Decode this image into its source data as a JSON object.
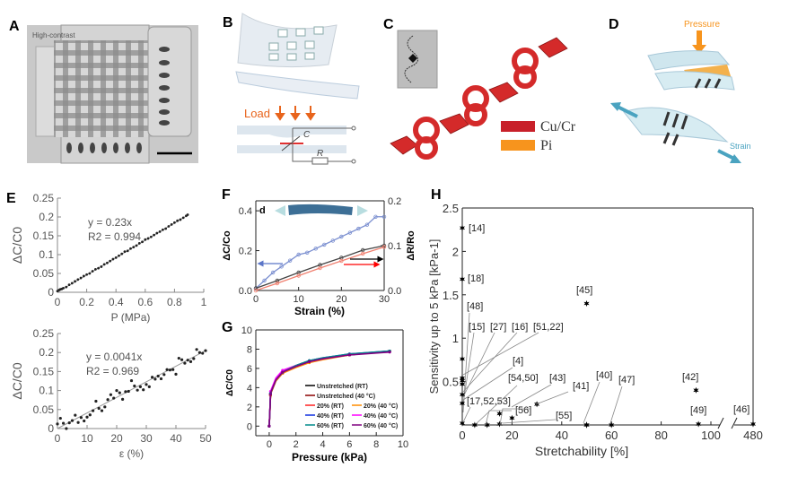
{
  "panels": {
    "A": "A",
    "B": "B",
    "C": "C",
    "D": "D",
    "E": "E",
    "F": "F",
    "G": "G",
    "H": "H"
  },
  "panel_a": {
    "caption": "High-contrast"
  },
  "panel_b": {
    "load_label": "Load",
    "capacitor_label": "C",
    "resistor_label": "R"
  },
  "panel_c": {
    "legend": [
      {
        "label": "Cu/Cr",
        "color": "#c8202a"
      },
      {
        "label": "Pi",
        "color": "#f7941d"
      }
    ]
  },
  "panel_d": {
    "pressure_label": "Pressure",
    "strain_label": "Strain"
  },
  "chart_data": [
    {
      "id": "E-top",
      "type": "scatter",
      "xlabel": "P (MPa)",
      "ylabel": "ΔC/C0",
      "xlim": [
        0,
        1
      ],
      "ylim": [
        0,
        0.25
      ],
      "xticks": [
        "0",
        "0.2",
        "0.4",
        "0.6",
        "0.8",
        "1"
      ],
      "xtick_values": [
        0,
        0.2,
        0.4,
        0.6,
        0.8,
        1
      ],
      "yticks": [
        "0",
        "0.05",
        "0.1",
        "0.15",
        "0.2",
        "0.25"
      ],
      "ytick_values": [
        0,
        0.05,
        0.1,
        0.15,
        0.2,
        0.25
      ],
      "annotation": [
        "y = 0.23x",
        "R2 = 0.994"
      ],
      "fit": {
        "slope": 0.23
      },
      "x": [
        0,
        0.01,
        0.02,
        0.03,
        0.04,
        0.06,
        0.08,
        0.1,
        0.12,
        0.14,
        0.16,
        0.18,
        0.2,
        0.22,
        0.24,
        0.26,
        0.28,
        0.3,
        0.32,
        0.34,
        0.36,
        0.38,
        0.4,
        0.42,
        0.44,
        0.46,
        0.48,
        0.5,
        0.52,
        0.54,
        0.56,
        0.58,
        0.6,
        0.62,
        0.64,
        0.66,
        0.68,
        0.7,
        0.72,
        0.74,
        0.76,
        0.78,
        0.8,
        0.82,
        0.84,
        0.86,
        0.88,
        0.89
      ],
      "y": [
        0.003,
        0.006,
        0.008,
        0.009,
        0.011,
        0.014,
        0.02,
        0.024,
        0.029,
        0.034,
        0.038,
        0.043,
        0.047,
        0.05,
        0.056,
        0.061,
        0.064,
        0.068,
        0.074,
        0.078,
        0.083,
        0.088,
        0.092,
        0.097,
        0.102,
        0.108,
        0.11,
        0.116,
        0.12,
        0.124,
        0.13,
        0.134,
        0.14,
        0.143,
        0.147,
        0.152,
        0.157,
        0.161,
        0.166,
        0.169,
        0.175,
        0.18,
        0.185,
        0.19,
        0.193,
        0.198,
        0.203,
        0.206
      ]
    },
    {
      "id": "E-bottom",
      "type": "scatter",
      "xlabel": "ε (%)",
      "ylabel": "ΔC/C0",
      "xlim": [
        0,
        50
      ],
      "ylim": [
        0,
        0.25
      ],
      "xticks": [
        "0",
        "10",
        "20",
        "30",
        "40",
        "50"
      ],
      "xtick_values": [
        0,
        10,
        20,
        30,
        40,
        50
      ],
      "yticks": [
        "0",
        "0.05",
        "0.1",
        "0.15",
        "0.2",
        "0.25"
      ],
      "ytick_values": [
        0,
        0.05,
        0.1,
        0.15,
        0.2,
        0.25
      ],
      "annotation": [
        "y = 0.0041x",
        "R2 = 0.969"
      ],
      "fit": {
        "slope": 0.0041
      },
      "x": [
        0,
        1,
        2,
        3,
        4,
        5,
        6,
        7,
        8,
        9,
        10,
        11,
        12,
        13,
        14,
        15,
        16,
        17,
        18,
        19,
        20,
        21,
        22,
        23,
        24,
        25,
        26,
        27,
        28,
        29,
        30,
        31,
        32,
        33,
        34,
        35,
        36,
        37,
        38,
        39,
        40,
        41,
        42,
        43,
        44,
        45,
        46,
        47,
        48,
        49,
        50
      ],
      "y": [
        0.012,
        0.027,
        0.014,
        0.0,
        0.015,
        0.021,
        0.035,
        0.016,
        0.029,
        0.02,
        0.03,
        0.036,
        0.047,
        0.072,
        0.053,
        0.047,
        0.057,
        0.076,
        0.089,
        0.08,
        0.1,
        0.094,
        0.077,
        0.097,
        0.098,
        0.126,
        0.112,
        0.101,
        0.11,
        0.102,
        0.116,
        0.11,
        0.135,
        0.13,
        0.138,
        0.131,
        0.142,
        0.155,
        0.154,
        0.155,
        0.143,
        0.185,
        0.181,
        0.172,
        0.18,
        0.176,
        0.184,
        0.208,
        0.2,
        0.198,
        0.205
      ]
    },
    {
      "id": "F",
      "type": "line",
      "xlabel": "Strain (%)",
      "ylabel": "ΔC/Co",
      "ylabel_right": "ΔR/Ro",
      "inset_label": "d",
      "xlim": [
        0,
        30
      ],
      "ylim": [
        0,
        0.45
      ],
      "ylim_right": [
        0,
        0.2
      ],
      "xticks": [
        "0",
        "10",
        "20",
        "30"
      ],
      "xtick_values": [
        0,
        10,
        20,
        30
      ],
      "yticks": [
        "0.0",
        "0.2",
        "0.4"
      ],
      "ytick_values": [
        0,
        0.2,
        0.4
      ],
      "yticks_right": [
        "0.0",
        "0.1",
        "0.2"
      ],
      "ytick_values_right": [
        0,
        0.1,
        0.2
      ],
      "series": [
        {
          "axis": "left",
          "color": "#7b8fd0",
          "x": [
            0,
            2,
            4,
            6,
            8,
            10,
            12,
            14,
            16,
            18,
            20,
            22,
            24,
            26,
            28,
            30
          ],
          "y": [
            0.01,
            0.05,
            0.09,
            0.12,
            0.15,
            0.18,
            0.19,
            0.21,
            0.23,
            0.25,
            0.27,
            0.29,
            0.31,
            0.33,
            0.37,
            0.37
          ]
        },
        {
          "axis": "right",
          "color": "#444444",
          "x": [
            0,
            5,
            10,
            15,
            20,
            25,
            30
          ],
          "y": [
            0.005,
            0.022,
            0.04,
            0.057,
            0.073,
            0.09,
            0.1
          ]
        },
        {
          "axis": "right",
          "color": "#f08070",
          "x": [
            0,
            5,
            10,
            15,
            20,
            25,
            30
          ],
          "y": [
            0,
            0.016,
            0.033,
            0.05,
            0.066,
            0.082,
            0.097
          ]
        }
      ]
    },
    {
      "id": "G",
      "type": "line",
      "xlabel": "Pressure (kPa)",
      "ylabel": "ΔC/C0",
      "xlim": [
        -1,
        10
      ],
      "ylim": [
        -1,
        10
      ],
      "xticks": [
        "0",
        "2",
        "4",
        "6",
        "8",
        "10"
      ],
      "xtick_values": [
        0,
        2,
        4,
        6,
        8,
        10
      ],
      "yticks": [
        "0",
        "2",
        "4",
        "6",
        "8",
        "10"
      ],
      "ytick_values": [
        0,
        2,
        4,
        6,
        8,
        10
      ],
      "legend_position": "center-right",
      "x": [
        0,
        0.05,
        0.1,
        0.15,
        0.5,
        1,
        2,
        3,
        4,
        6,
        9
      ],
      "series": [
        {
          "name": "Unstretched (RT)",
          "color": "#000000",
          "y": [
            0,
            1.5,
            3.3,
            3.6,
            4.8,
            5.6,
            6.3,
            6.8,
            7.0,
            7.4,
            7.8
          ]
        },
        {
          "name": "Unstretched (40 °C)",
          "color": "#8b0000",
          "y": [
            0,
            1.4,
            3.2,
            3.5,
            4.7,
            5.5,
            6.2,
            6.7,
            7.0,
            7.4,
            7.8
          ]
        },
        {
          "name": "20% (RT)",
          "color": "#ff2020",
          "y": [
            0,
            1.5,
            3.3,
            3.6,
            4.8,
            5.6,
            6.2,
            6.7,
            7.0,
            7.4,
            7.8
          ]
        },
        {
          "name": "20% (40 °C)",
          "color": "#ff8c00",
          "y": [
            0,
            1.4,
            3.2,
            3.5,
            4.7,
            5.5,
            6.1,
            6.6,
            6.9,
            7.4,
            7.8
          ]
        },
        {
          "name": "40% (RT)",
          "color": "#1030e0",
          "y": [
            0,
            1.6,
            3.4,
            3.6,
            4.9,
            5.7,
            6.3,
            6.8,
            7.1,
            7.5,
            7.8
          ]
        },
        {
          "name": "40% (40 °C)",
          "color": "#ff00ff",
          "y": [
            0,
            1.6,
            3.6,
            3.8,
            5.0,
            5.8,
            6.3,
            6.7,
            7.0,
            7.5,
            7.7
          ]
        },
        {
          "name": "60% (RT)",
          "color": "#008b8b",
          "y": [
            0,
            1.5,
            3.4,
            3.6,
            4.8,
            5.6,
            6.3,
            6.8,
            7.1,
            7.5,
            7.8
          ]
        },
        {
          "name": "60% (40 °C)",
          "color": "#800080",
          "y": [
            0,
            1.5,
            3.3,
            3.6,
            4.8,
            5.6,
            6.2,
            6.7,
            7.0,
            7.4,
            7.7
          ]
        }
      ]
    },
    {
      "id": "H",
      "type": "scatter",
      "xlabel": "Stretchability [%]",
      "ylabel": "Sensitivity up to 5 kPa [kPa-1]",
      "xlim": [
        0,
        100
      ],
      "x_break": [
        100,
        480
      ],
      "ylim": [
        0,
        2.5
      ],
      "xticks": [
        "0",
        "20",
        "40",
        "60",
        "80",
        "100",
        "480"
      ],
      "xtick_values": [
        0,
        20,
        40,
        60,
        80,
        100,
        480
      ],
      "yticks": [
        "0.5",
        "1",
        "1.5",
        "2",
        "2.5"
      ],
      "ytick_values": [
        0.5,
        1,
        1.5,
        2,
        2.5
      ],
      "points": [
        {
          "ref": "[14]",
          "x": 0,
          "y": 2.27
        },
        {
          "ref": "[18]",
          "x": 0,
          "y": 1.68
        },
        {
          "ref": "[48]",
          "x": 0,
          "y": 0.76
        },
        {
          "ref": "[15]",
          "x": 0,
          "y": 0.54
        },
        {
          "ref": "[27]",
          "x": 0,
          "y": 0.51
        },
        {
          "ref": "[16]",
          "x": 0,
          "y": 0.47
        },
        {
          "ref": "[51,22]",
          "x": 0,
          "y": 0.35
        },
        {
          "ref": "[4]",
          "x": 0,
          "y": 0.25
        },
        {
          "ref": "[17,52,53]",
          "x": 0,
          "y": 0.02
        },
        {
          "ref": "[54,50]",
          "x": 15,
          "y": 0.13
        },
        {
          "ref": "[56]",
          "x": 20,
          "y": 0.08
        },
        {
          "ref": "[43]",
          "x": 30,
          "y": 0.24
        },
        {
          "ref": "[41]",
          "x": 50,
          "y": 0.0
        },
        {
          "ref": "[55]",
          "x": 15,
          "y": 0.01
        },
        {
          "ref": "[40]",
          "x": 50,
          "y": 0.0
        },
        {
          "ref": "[47]",
          "x": 60,
          "y": 0.0
        },
        {
          "ref": "[45]",
          "x": 50,
          "y": 1.4
        },
        {
          "ref": "[42]",
          "x": 94,
          "y": 0.4
        },
        {
          "ref": "[49]",
          "x": 95,
          "y": 0.01
        },
        {
          "ref": "[46]",
          "x": 480,
          "y": 0.01
        },
        {
          "ref": "",
          "x": 5,
          "y": 0.0
        },
        {
          "ref": "",
          "x": 10,
          "y": 0.0
        }
      ]
    }
  ]
}
